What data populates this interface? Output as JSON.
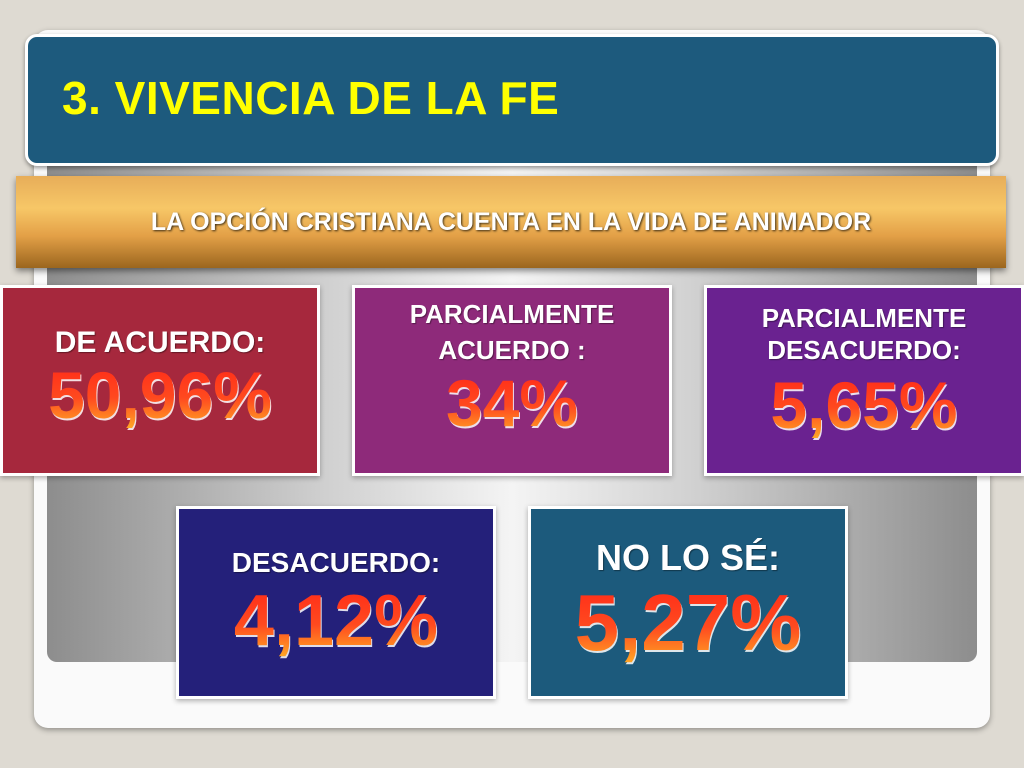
{
  "slide": {
    "title": "3. VIVENCIA DE LA FE",
    "subtitle": "LA OPCIÓN CRISTIANA CUENTA EN LA VIDA DE ANIMADOR",
    "colors": {
      "title_bar": "#1d5a7d",
      "title_text": "#ffff00",
      "banner": "#f7c767",
      "value_text": "#ff2a18"
    }
  },
  "stats": [
    {
      "label": "DE ACUERDO:",
      "value": "50,96%",
      "color": "#a6283d"
    },
    {
      "label": "PARCIALMENTE ACUERDO :",
      "value": "34%",
      "color": "#8e2a7a"
    },
    {
      "label": "PARCIALMENTE DESACUERDO:",
      "value": "5,65%",
      "color": "#6a2290"
    },
    {
      "label": "DESACUERDO:",
      "value": "4,12%",
      "color": "#24207a"
    },
    {
      "label": "NO LO SÉ:",
      "value": "5,27%",
      "color": "#1c5a7c"
    }
  ]
}
